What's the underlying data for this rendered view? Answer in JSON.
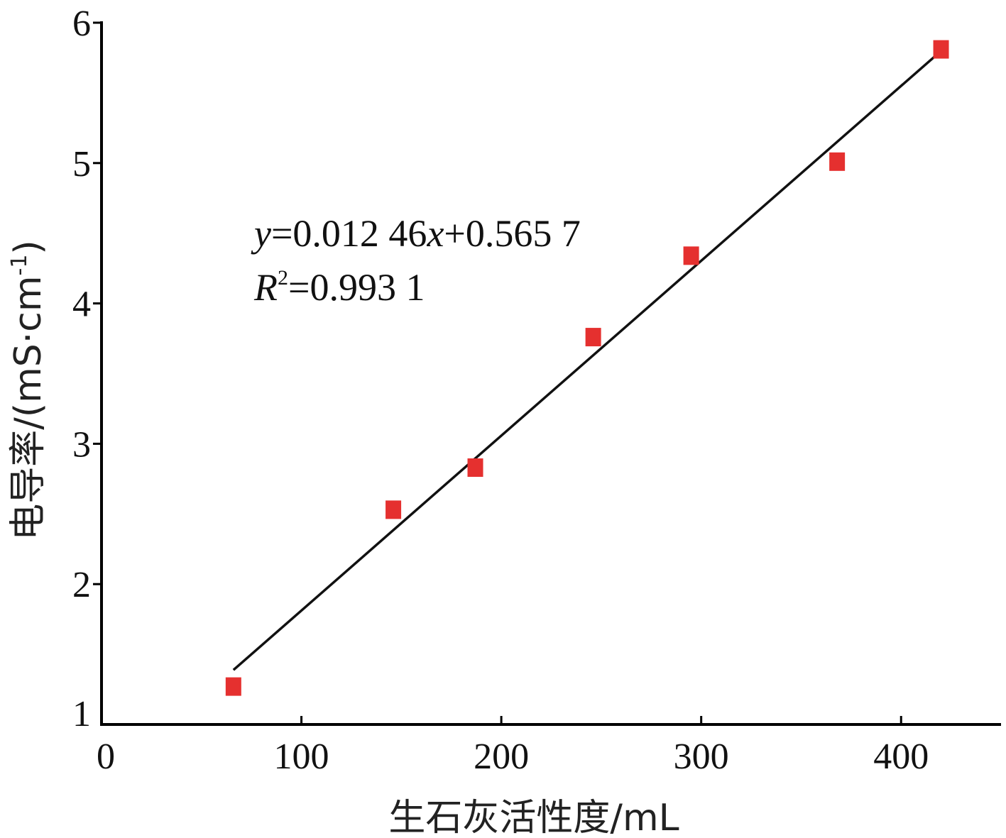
{
  "chart_data": {
    "type": "scatter",
    "title": "",
    "xlabel": "生石灰活性度/mL",
    "ylabel": "电导率/(mS·cm",
    "ylabel_sup": "-1",
    "ylabel_close": ")",
    "xlim": [
      0,
      450
    ],
    "ylim": [
      1,
      6
    ],
    "xticks": [
      0,
      100,
      200,
      300,
      400
    ],
    "yticks": [
      1,
      2,
      3,
      4,
      5,
      6
    ],
    "grid": false,
    "points": [
      {
        "x": 66,
        "y": 1.27
      },
      {
        "x": 146,
        "y": 2.53
      },
      {
        "x": 187,
        "y": 2.83
      },
      {
        "x": 246,
        "y": 3.76
      },
      {
        "x": 295,
        "y": 4.34
      },
      {
        "x": 368,
        "y": 5.01
      },
      {
        "x": 420,
        "y": 5.81
      }
    ],
    "fit": {
      "slope": 0.01246,
      "intercept": 0.5657,
      "x_range": [
        66,
        420
      ]
    },
    "marker_color": "#e5302f",
    "line_color": "#111111",
    "annotations": {
      "eq_y": "y",
      "eq_rest": "=0.012 46",
      "eq_x": "x",
      "eq_tail": "+0.565 7",
      "r2_R": "R",
      "r2_sup": "2",
      "r2_value": "=0.993 1"
    }
  }
}
